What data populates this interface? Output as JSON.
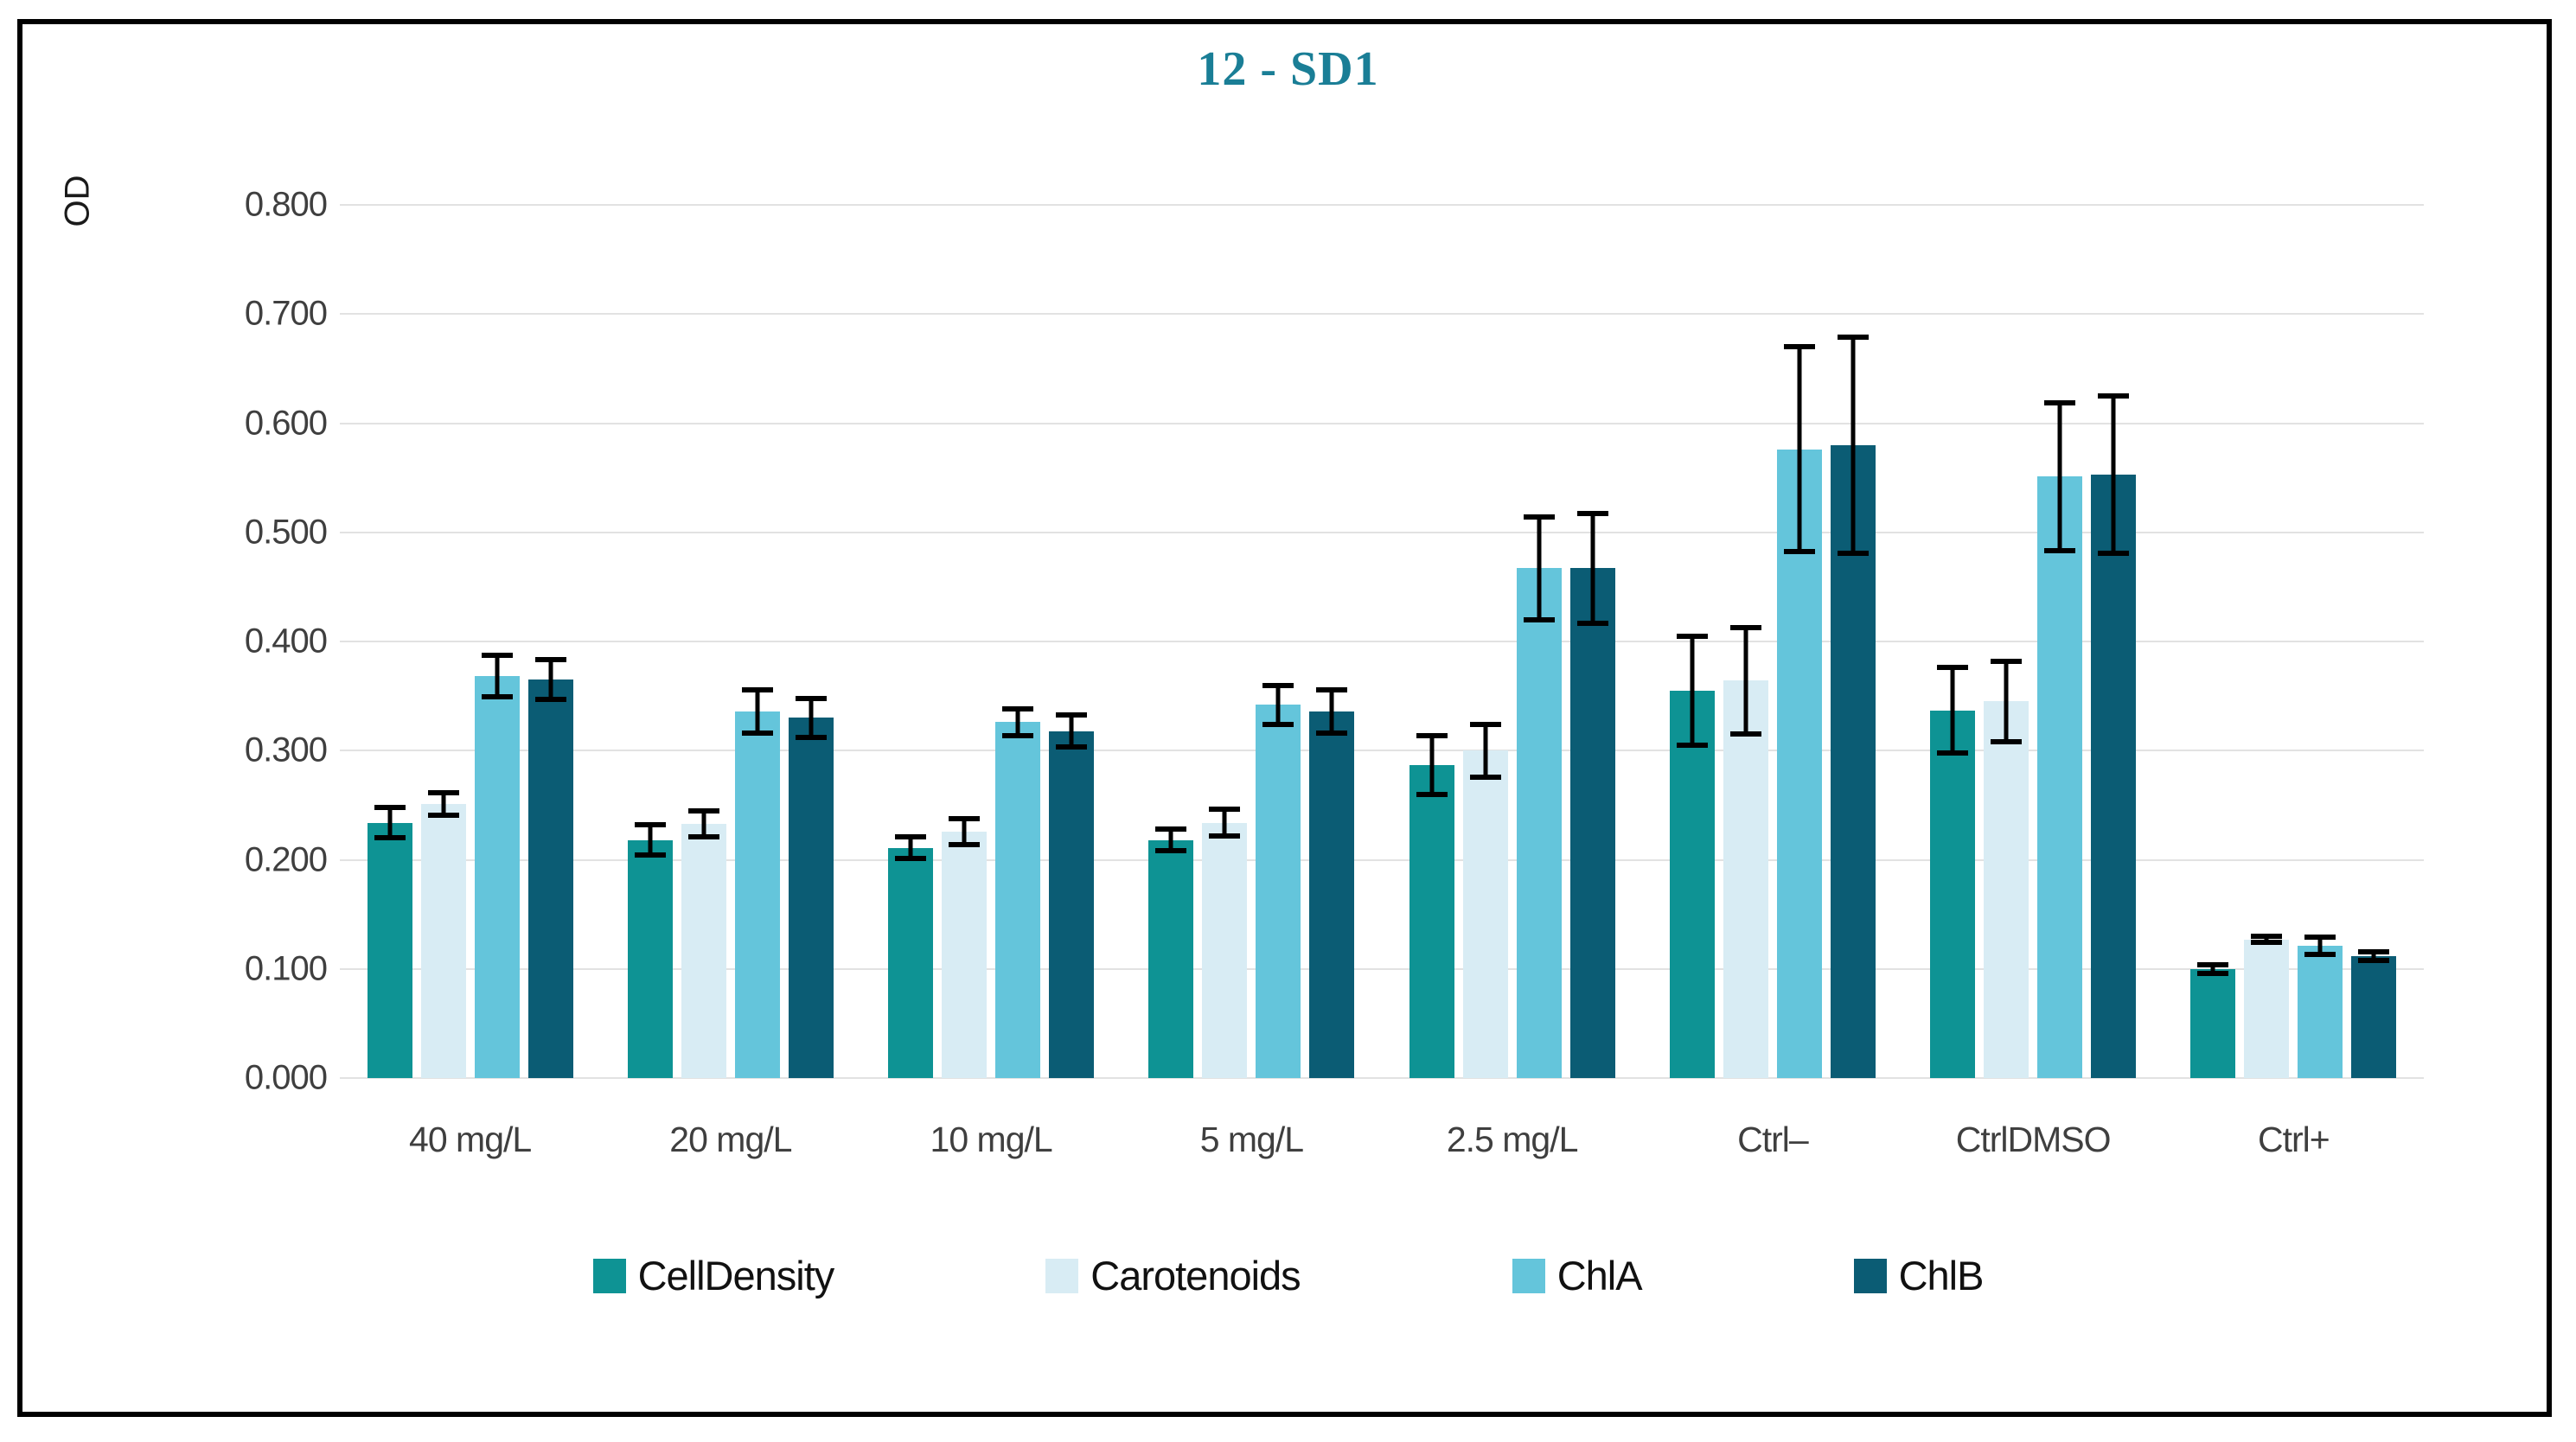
{
  "chart_data": {
    "type": "bar",
    "title": "12 - SD1",
    "title_color": "#1A7E96",
    "ylabel": "OD",
    "ylim": [
      0,
      0.8
    ],
    "grid": true,
    "legend_position": "bottom",
    "gridline_color": "#E2E2E2",
    "axis_text_color": "#3F3F3F",
    "error_bar_color": "#000000",
    "ytick_labels": [
      "0.800",
      "0.700",
      "0.600",
      "0.500",
      "0.400",
      "0.300",
      "0.200",
      "0.100",
      "0.000"
    ],
    "ytick_values": [
      0.8,
      0.7,
      0.6,
      0.5,
      0.4,
      0.3,
      0.2,
      0.1,
      0.0
    ],
    "categories": [
      "40 mg/L",
      "20 mg/L",
      "10 mg/L",
      "5 mg/L",
      "2.5 mg/L",
      "Ctrl–",
      "CtrlDMSO",
      "Ctrl+"
    ],
    "series": [
      {
        "name": "CellDensity",
        "color": "#0E9394",
        "values": [
          0.234,
          0.218,
          0.211,
          0.218,
          0.287,
          0.355,
          0.337,
          0.1
        ],
        "errors": [
          0.014,
          0.014,
          0.01,
          0.01,
          0.027,
          0.05,
          0.039,
          0.004
        ]
      },
      {
        "name": "Carotenoids",
        "color": "#D8ECF4",
        "values": [
          0.251,
          0.233,
          0.226,
          0.234,
          0.3,
          0.364,
          0.345,
          0.127
        ],
        "errors": [
          0.01,
          0.012,
          0.012,
          0.012,
          0.024,
          0.049,
          0.037,
          0.003
        ]
      },
      {
        "name": "ChlA",
        "color": "#64C5DB",
        "values": [
          0.368,
          0.336,
          0.326,
          0.342,
          0.467,
          0.576,
          0.551,
          0.121
        ],
        "errors": [
          0.019,
          0.02,
          0.012,
          0.018,
          0.047,
          0.094,
          0.068,
          0.008
        ]
      },
      {
        "name": "ChlB",
        "color": "#0B5C74",
        "values": [
          0.365,
          0.33,
          0.318,
          0.336,
          0.467,
          0.58,
          0.553,
          0.112
        ],
        "errors": [
          0.018,
          0.018,
          0.015,
          0.02,
          0.05,
          0.099,
          0.072,
          0.004
        ]
      }
    ]
  }
}
